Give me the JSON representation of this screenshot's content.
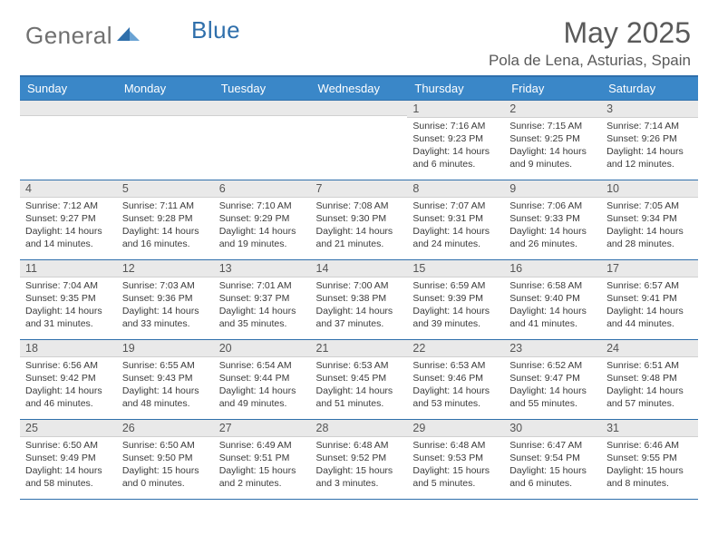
{
  "logo": {
    "text1": "General",
    "text2": "Blue"
  },
  "title": "May 2025",
  "location": "Pola de Lena, Asturias, Spain",
  "colors": {
    "header_bg": "#3a87c8",
    "header_border": "#2f6fab",
    "daynum_bg": "#e9e9e9",
    "text": "#3a3a3a",
    "logo_gray": "#707070",
    "logo_blue": "#2f6fab"
  },
  "weekdays": [
    "Sunday",
    "Monday",
    "Tuesday",
    "Wednesday",
    "Thursday",
    "Friday",
    "Saturday"
  ],
  "weeks": [
    [
      {
        "n": "",
        "lines": []
      },
      {
        "n": "",
        "lines": []
      },
      {
        "n": "",
        "lines": []
      },
      {
        "n": "",
        "lines": []
      },
      {
        "n": "1",
        "lines": [
          "Sunrise: 7:16 AM",
          "Sunset: 9:23 PM",
          "Daylight: 14 hours",
          "and 6 minutes."
        ]
      },
      {
        "n": "2",
        "lines": [
          "Sunrise: 7:15 AM",
          "Sunset: 9:25 PM",
          "Daylight: 14 hours",
          "and 9 minutes."
        ]
      },
      {
        "n": "3",
        "lines": [
          "Sunrise: 7:14 AM",
          "Sunset: 9:26 PM",
          "Daylight: 14 hours",
          "and 12 minutes."
        ]
      }
    ],
    [
      {
        "n": "4",
        "lines": [
          "Sunrise: 7:12 AM",
          "Sunset: 9:27 PM",
          "Daylight: 14 hours",
          "and 14 minutes."
        ]
      },
      {
        "n": "5",
        "lines": [
          "Sunrise: 7:11 AM",
          "Sunset: 9:28 PM",
          "Daylight: 14 hours",
          "and 16 minutes."
        ]
      },
      {
        "n": "6",
        "lines": [
          "Sunrise: 7:10 AM",
          "Sunset: 9:29 PM",
          "Daylight: 14 hours",
          "and 19 minutes."
        ]
      },
      {
        "n": "7",
        "lines": [
          "Sunrise: 7:08 AM",
          "Sunset: 9:30 PM",
          "Daylight: 14 hours",
          "and 21 minutes."
        ]
      },
      {
        "n": "8",
        "lines": [
          "Sunrise: 7:07 AM",
          "Sunset: 9:31 PM",
          "Daylight: 14 hours",
          "and 24 minutes."
        ]
      },
      {
        "n": "9",
        "lines": [
          "Sunrise: 7:06 AM",
          "Sunset: 9:33 PM",
          "Daylight: 14 hours",
          "and 26 minutes."
        ]
      },
      {
        "n": "10",
        "lines": [
          "Sunrise: 7:05 AM",
          "Sunset: 9:34 PM",
          "Daylight: 14 hours",
          "and 28 minutes."
        ]
      }
    ],
    [
      {
        "n": "11",
        "lines": [
          "Sunrise: 7:04 AM",
          "Sunset: 9:35 PM",
          "Daylight: 14 hours",
          "and 31 minutes."
        ]
      },
      {
        "n": "12",
        "lines": [
          "Sunrise: 7:03 AM",
          "Sunset: 9:36 PM",
          "Daylight: 14 hours",
          "and 33 minutes."
        ]
      },
      {
        "n": "13",
        "lines": [
          "Sunrise: 7:01 AM",
          "Sunset: 9:37 PM",
          "Daylight: 14 hours",
          "and 35 minutes."
        ]
      },
      {
        "n": "14",
        "lines": [
          "Sunrise: 7:00 AM",
          "Sunset: 9:38 PM",
          "Daylight: 14 hours",
          "and 37 minutes."
        ]
      },
      {
        "n": "15",
        "lines": [
          "Sunrise: 6:59 AM",
          "Sunset: 9:39 PM",
          "Daylight: 14 hours",
          "and 39 minutes."
        ]
      },
      {
        "n": "16",
        "lines": [
          "Sunrise: 6:58 AM",
          "Sunset: 9:40 PM",
          "Daylight: 14 hours",
          "and 41 minutes."
        ]
      },
      {
        "n": "17",
        "lines": [
          "Sunrise: 6:57 AM",
          "Sunset: 9:41 PM",
          "Daylight: 14 hours",
          "and 44 minutes."
        ]
      }
    ],
    [
      {
        "n": "18",
        "lines": [
          "Sunrise: 6:56 AM",
          "Sunset: 9:42 PM",
          "Daylight: 14 hours",
          "and 46 minutes."
        ]
      },
      {
        "n": "19",
        "lines": [
          "Sunrise: 6:55 AM",
          "Sunset: 9:43 PM",
          "Daylight: 14 hours",
          "and 48 minutes."
        ]
      },
      {
        "n": "20",
        "lines": [
          "Sunrise: 6:54 AM",
          "Sunset: 9:44 PM",
          "Daylight: 14 hours",
          "and 49 minutes."
        ]
      },
      {
        "n": "21",
        "lines": [
          "Sunrise: 6:53 AM",
          "Sunset: 9:45 PM",
          "Daylight: 14 hours",
          "and 51 minutes."
        ]
      },
      {
        "n": "22",
        "lines": [
          "Sunrise: 6:53 AM",
          "Sunset: 9:46 PM",
          "Daylight: 14 hours",
          "and 53 minutes."
        ]
      },
      {
        "n": "23",
        "lines": [
          "Sunrise: 6:52 AM",
          "Sunset: 9:47 PM",
          "Daylight: 14 hours",
          "and 55 minutes."
        ]
      },
      {
        "n": "24",
        "lines": [
          "Sunrise: 6:51 AM",
          "Sunset: 9:48 PM",
          "Daylight: 14 hours",
          "and 57 minutes."
        ]
      }
    ],
    [
      {
        "n": "25",
        "lines": [
          "Sunrise: 6:50 AM",
          "Sunset: 9:49 PM",
          "Daylight: 14 hours",
          "and 58 minutes."
        ]
      },
      {
        "n": "26",
        "lines": [
          "Sunrise: 6:50 AM",
          "Sunset: 9:50 PM",
          "Daylight: 15 hours",
          "and 0 minutes."
        ]
      },
      {
        "n": "27",
        "lines": [
          "Sunrise: 6:49 AM",
          "Sunset: 9:51 PM",
          "Daylight: 15 hours",
          "and 2 minutes."
        ]
      },
      {
        "n": "28",
        "lines": [
          "Sunrise: 6:48 AM",
          "Sunset: 9:52 PM",
          "Daylight: 15 hours",
          "and 3 minutes."
        ]
      },
      {
        "n": "29",
        "lines": [
          "Sunrise: 6:48 AM",
          "Sunset: 9:53 PM",
          "Daylight: 15 hours",
          "and 5 minutes."
        ]
      },
      {
        "n": "30",
        "lines": [
          "Sunrise: 6:47 AM",
          "Sunset: 9:54 PM",
          "Daylight: 15 hours",
          "and 6 minutes."
        ]
      },
      {
        "n": "31",
        "lines": [
          "Sunrise: 6:46 AM",
          "Sunset: 9:55 PM",
          "Daylight: 15 hours",
          "and 8 minutes."
        ]
      }
    ]
  ]
}
